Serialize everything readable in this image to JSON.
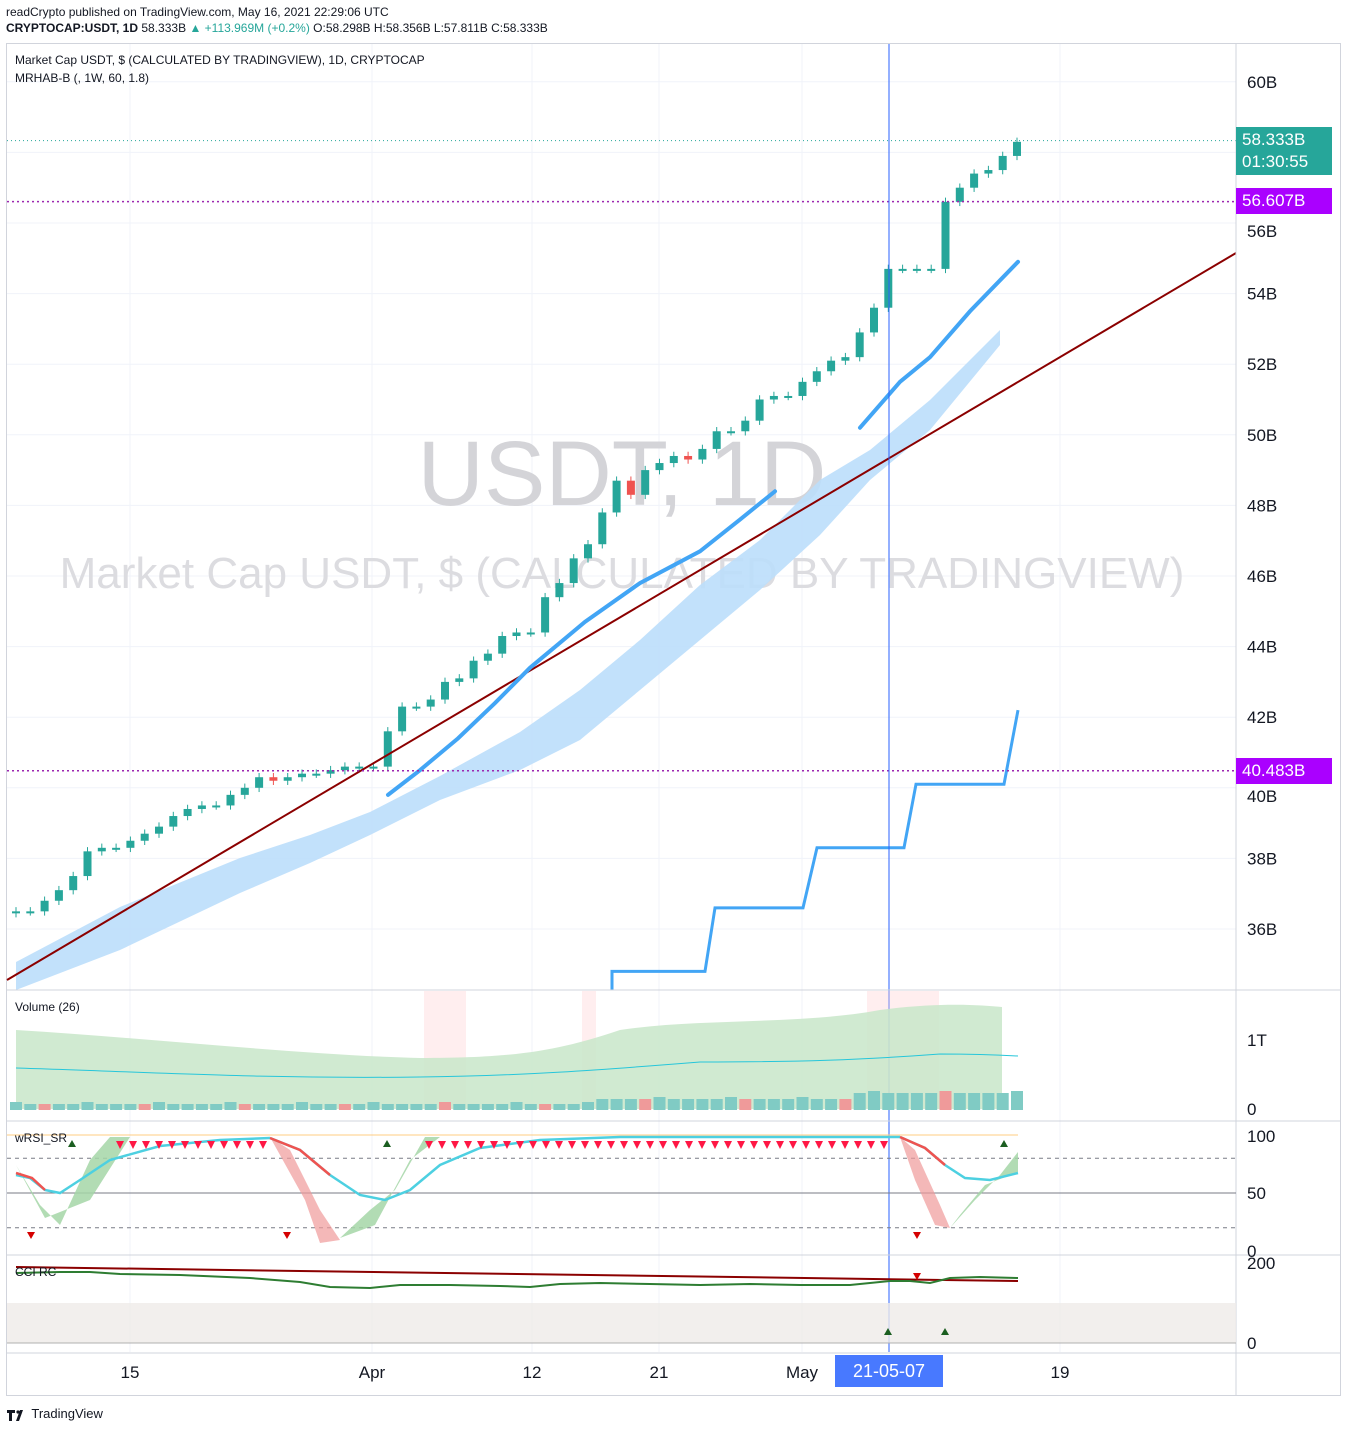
{
  "header": {
    "publisher": "readCrypto published on TradingView.com, May 16, 2021 22:29:06 UTC",
    "symbol": "CRYPTOCAP:USDT, 1D",
    "last": "58.333B",
    "change": "▲ +113.969M (+0.2%)",
    "ohlc": "O:58.298B H:58.356B L:57.811B C:58.333B"
  },
  "legend": {
    "main": "Market Cap USDT, $ (CALCULATED BY TRADINGVIEW), 1D, CRYPTOCAP",
    "indicator": "MRHAB-B (, 1W, 60, 1.8)",
    "volume": "Volume (26)",
    "rsi": "wRSI_SR",
    "cci": "CCI RC"
  },
  "watermark": {
    "symbol": "USDT, 1D",
    "description": "Market Cap USDT, $ (CALCULATED BY TRADINGVIEW)"
  },
  "price_tags": {
    "last_price": "58.333B",
    "countdown": "01:30:55",
    "upper_level": "56.607B",
    "lower_level": "40.483B"
  },
  "crosshair_date": "21-05-07",
  "footer": "TradingView",
  "colors": {
    "up": "#26a69a",
    "down": "#ef5350",
    "band": "#bbdefb",
    "ma_line": "#42a5f5",
    "trendline": "#8b0000",
    "level": "#9c27b0",
    "crosshair": "#2962ff"
  },
  "chart_data": [
    {
      "type": "candlestick",
      "title": "Market Cap USDT, $ (CALCULATED BY TRADINGVIEW), 1D, CRYPTOCAP",
      "x_ticks": [
        "15",
        "Apr",
        "12",
        "21",
        "May",
        "19"
      ],
      "y_ticks": [
        "36B",
        "38B",
        "40B",
        "42B",
        "44B",
        "46B",
        "48B",
        "50B",
        "52B",
        "54B",
        "56B",
        "60B"
      ],
      "ylim": [
        34.4,
        61.0
      ],
      "units": "B",
      "closes": [
        36.5,
        36.5,
        36.8,
        37.1,
        37.5,
        38.2,
        38.3,
        38.3,
        38.5,
        38.7,
        38.9,
        39.2,
        39.4,
        39.5,
        39.5,
        39.8,
        40.0,
        40.3,
        40.2,
        40.3,
        40.4,
        40.4,
        40.5,
        40.6,
        40.6,
        40.6,
        41.6,
        42.3,
        42.3,
        42.5,
        43.0,
        43.1,
        43.6,
        43.8,
        44.3,
        44.4,
        44.4,
        45.4,
        45.8,
        46.5,
        46.9,
        47.8,
        48.7,
        48.3,
        49.0,
        49.2,
        49.4,
        49.3,
        49.6,
        50.1,
        50.1,
        50.4,
        51.0,
        51.1,
        51.1,
        51.5,
        51.8,
        52.1,
        52.2,
        52.9,
        53.6,
        54.7,
        54.7,
        54.7,
        54.7,
        56.6,
        57.0,
        57.4,
        57.5,
        57.9,
        58.3
      ],
      "series": [
        {
          "name": "MRHAB-B",
          "values": [
            39.8,
            40.5,
            41.4,
            42.4,
            43.4,
            44.7,
            45.8,
            46.7,
            47.6,
            48.4,
            50.2,
            51.5,
            52.2,
            53.5,
            54.9
          ]
        },
        {
          "name": "MRHAB-B step",
          "values": [
            34.8,
            34.8,
            36.6,
            36.6,
            38.3,
            38.3,
            40.1,
            40.1,
            42.2
          ]
        }
      ],
      "levels": [
        56.607,
        40.483
      ]
    },
    {
      "type": "area",
      "title": "Volume (26)",
      "y_ticks": [
        "0",
        "1T"
      ]
    },
    {
      "type": "line",
      "title": "wRSI_SR",
      "y_ticks": [
        "0",
        "50",
        "100"
      ],
      "ylim": [
        0,
        100
      ]
    },
    {
      "type": "line",
      "title": "CCI RC",
      "y_ticks": [
        "0",
        "200"
      ]
    }
  ]
}
